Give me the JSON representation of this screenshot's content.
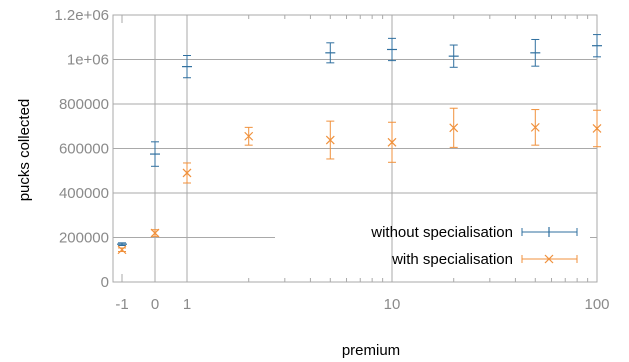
{
  "chart_data": {
    "type": "scatter",
    "title": "",
    "xlabel": "premium",
    "ylabel": "pucks collected",
    "y_tick_labels": [
      "0",
      "200000",
      "400000",
      "600000",
      "800000",
      "1e+06",
      "1.2e+06"
    ],
    "y_ticks": [
      0,
      200000,
      400000,
      600000,
      800000,
      1000000,
      1200000
    ],
    "ylim": [
      0,
      1200000
    ],
    "x_tick_labels": [
      "-1",
      "0",
      "1",
      "10",
      "100"
    ],
    "x_ticks": [
      -1,
      0,
      1,
      10,
      100
    ],
    "x_scale": "log for values >= 1; -1 and 0 placed on separate linear segment",
    "grid": true,
    "legend_position": "bottom-right",
    "series": [
      {
        "name": "without specialisation",
        "marker": "plus",
        "color": "#2f6f9f",
        "x": [
          -1,
          0,
          1,
          5,
          10,
          20,
          50,
          100
        ],
        "y": [
          170000,
          575000,
          968000,
          1030000,
          1045000,
          1015000,
          1030000,
          1062000
        ],
        "err": [
          6000,
          55000,
          50000,
          45000,
          50000,
          50000,
          60000,
          50000
        ]
      },
      {
        "name": "with specialisation",
        "marker": "cross",
        "color": "#f0913c",
        "x": [
          -1,
          0,
          1,
          2,
          5,
          10,
          20,
          50,
          100
        ],
        "y": [
          145000,
          220000,
          490000,
          655000,
          638000,
          628000,
          693000,
          695000,
          690000
        ],
        "err": [
          8000,
          15000,
          45000,
          40000,
          85000,
          90000,
          88000,
          80000,
          82000
        ]
      }
    ]
  }
}
